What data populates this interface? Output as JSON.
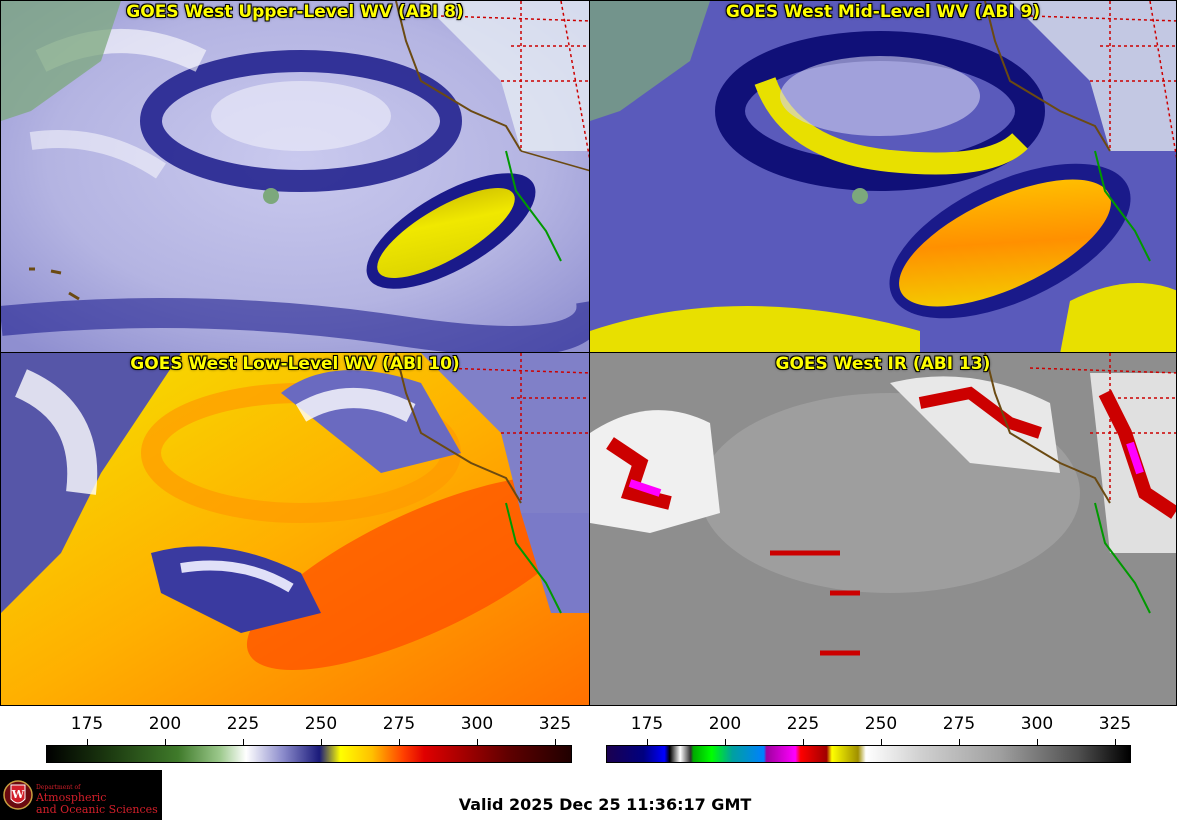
{
  "panels": [
    {
      "title": "GOES West Upper-Level WV (ABI 8)",
      "palette": "wv_upper"
    },
    {
      "title": "GOES West Mid-Level WV (ABI 9)",
      "palette": "wv_mid"
    },
    {
      "title": "GOES West Low-Level WV (ABI 10)",
      "palette": "wv_low"
    },
    {
      "title": "GOES West IR (ABI 13)",
      "palette": "ir"
    }
  ],
  "colorbars": {
    "left": {
      "ticks": [
        "175",
        "200",
        "225",
        "250",
        "275",
        "300",
        "325"
      ]
    },
    "right": {
      "ticks": [
        "175",
        "200",
        "225",
        "250",
        "275",
        "300",
        "325"
      ]
    }
  },
  "logo": {
    "small": "Department of",
    "line1": "Atmospheric",
    "line2": "and Oceanic Sciences"
  },
  "valid_time": "Valid 2025 Dec 25 11:36:17 GMT",
  "colors": {
    "title_text": "#ffff00",
    "state_border": "#cc0000",
    "coastline": "#7a4a10",
    "mexico_coast": "#009900",
    "logo_text": "#d21f2a"
  }
}
